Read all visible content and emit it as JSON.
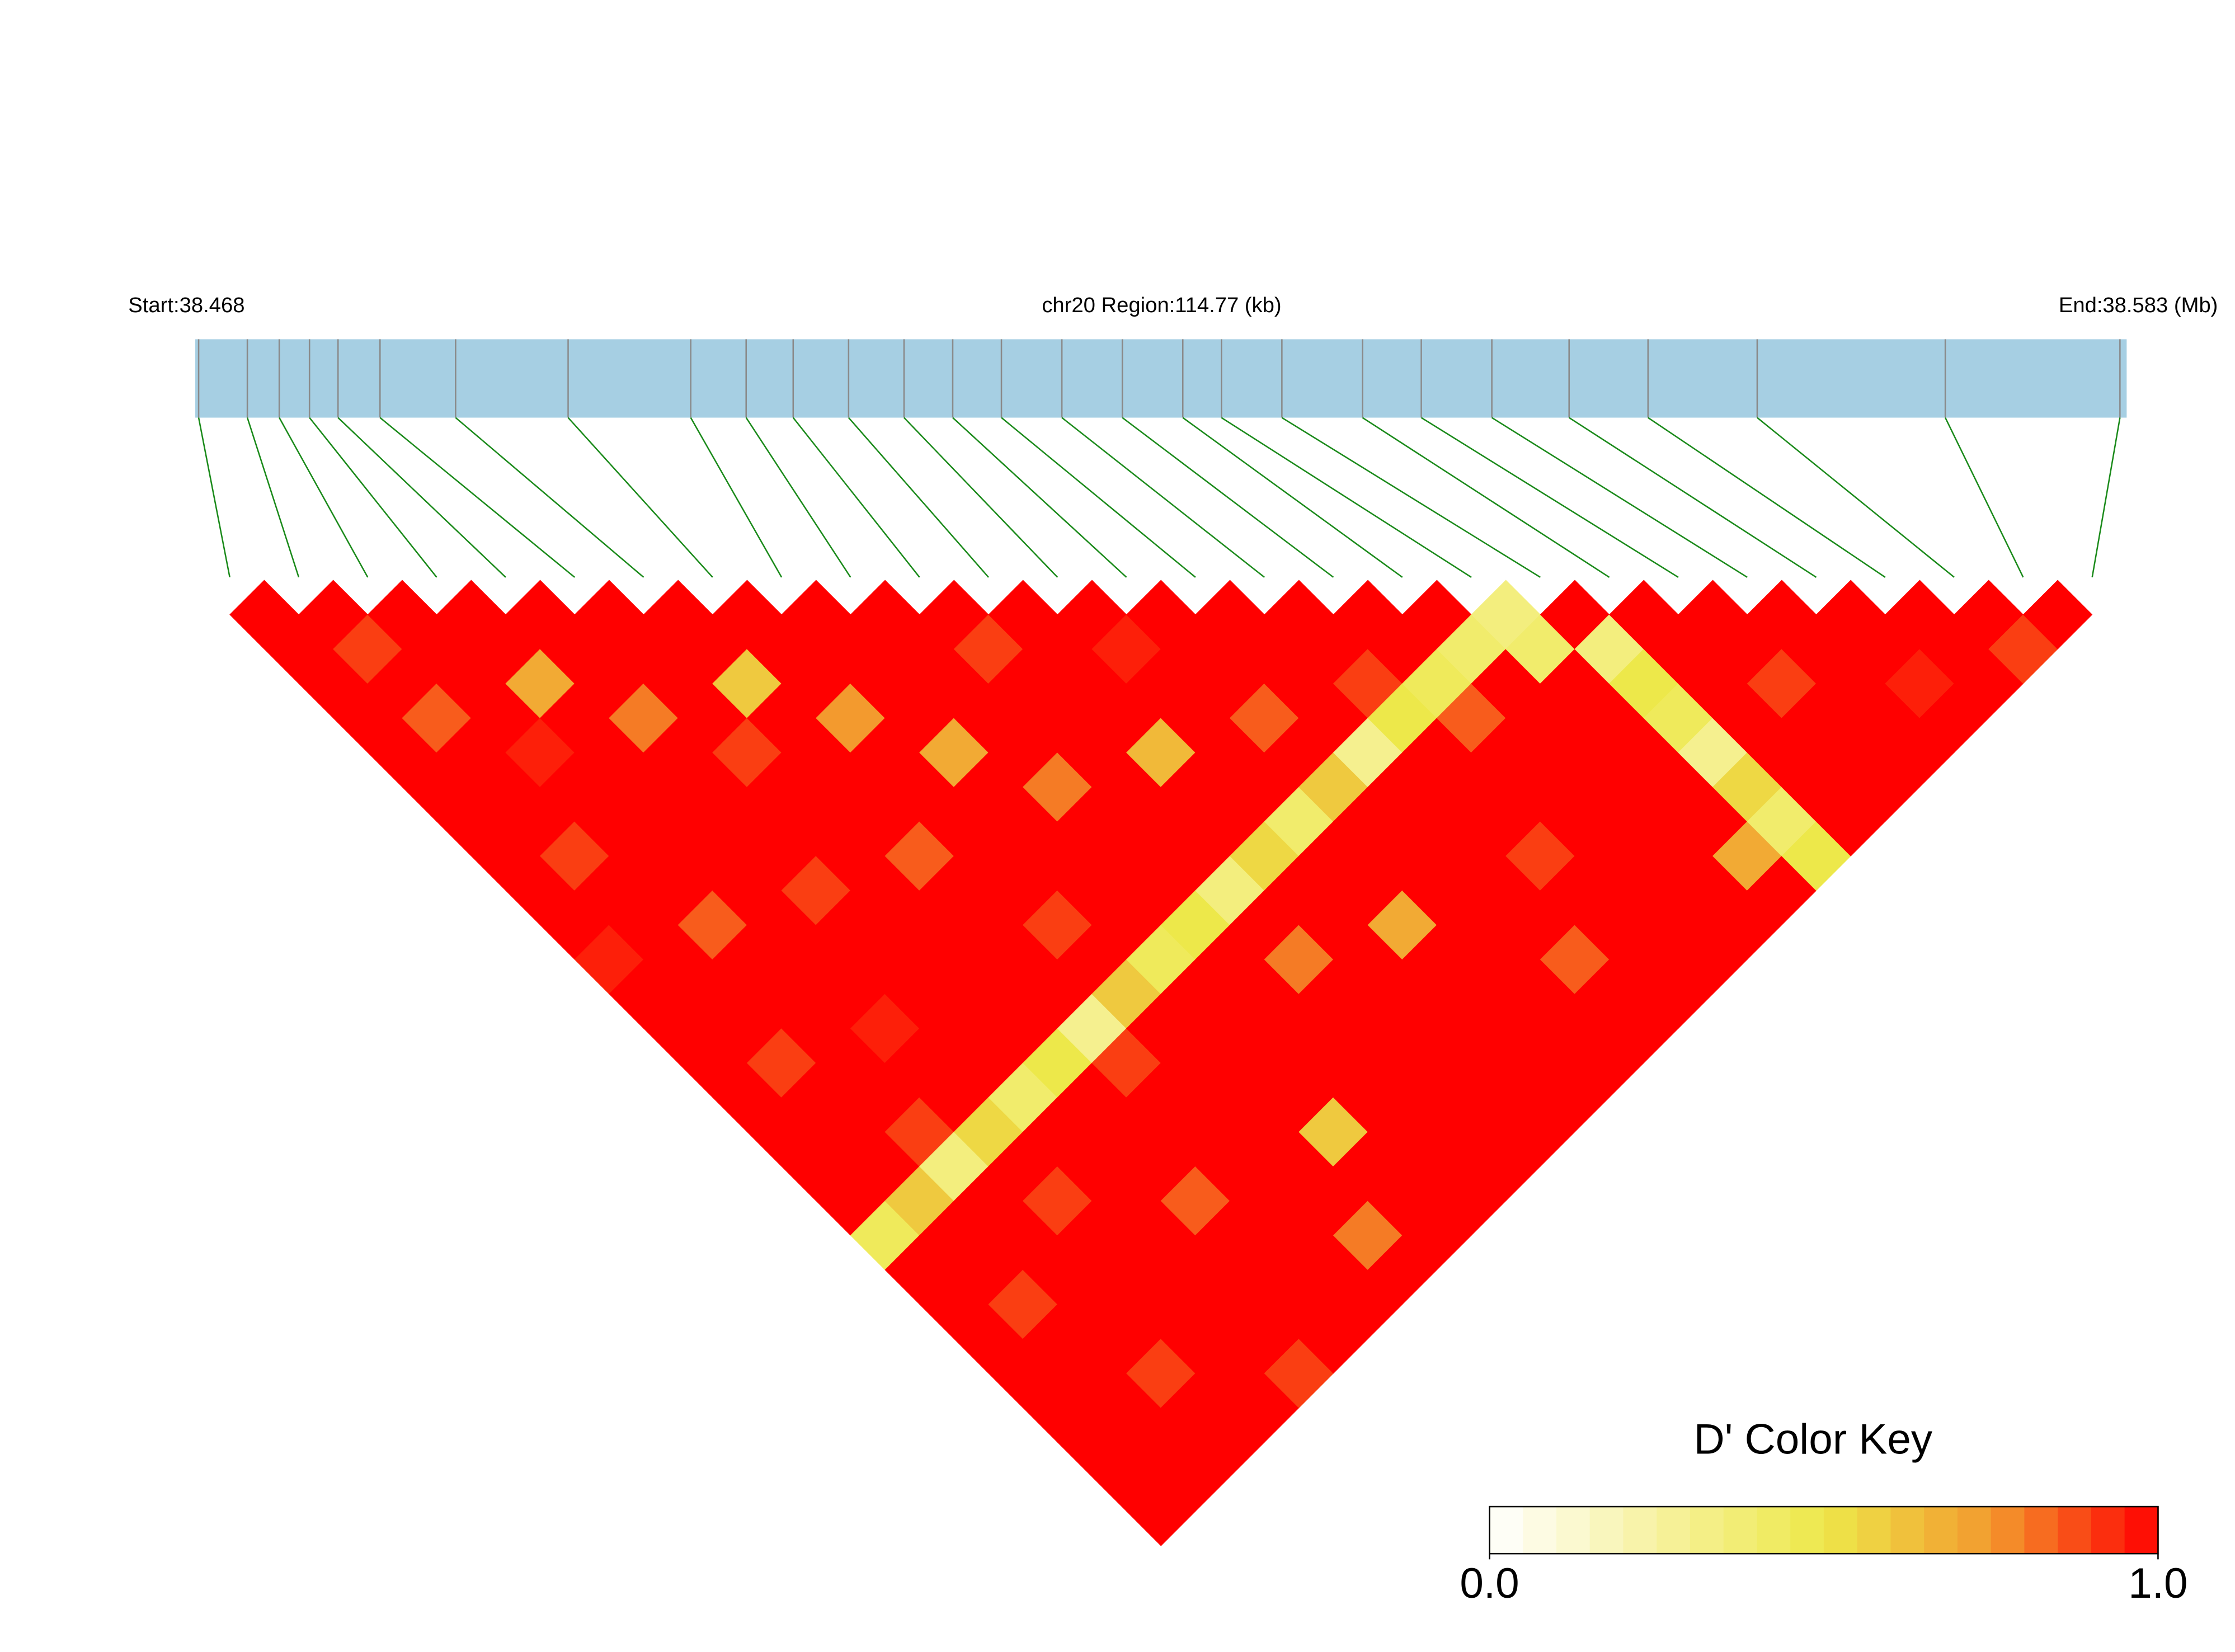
{
  "chart_data": {
    "type": "ld_heatmap",
    "start_label": "Start:38.468",
    "region_label": "chr20 Region:114.77 (kb)",
    "end_label": "End:38.583 (Mb)",
    "xlim": [
      38.468,
      38.583
    ],
    "positions": [
      38.4682,
      38.4711,
      38.473,
      38.4748,
      38.4765,
      38.479,
      38.4835,
      38.4902,
      38.4975,
      38.5008,
      38.5036,
      38.5069,
      38.5102,
      38.5131,
      38.516,
      38.5196,
      38.5232,
      38.5268,
      38.5291,
      38.5327,
      38.5375,
      38.541,
      38.5452,
      38.5498,
      38.5545,
      38.561,
      38.5722,
      38.5826
    ],
    "dprime": [
      [
        1
      ],
      [
        1,
        1
      ],
      [
        1,
        0.9,
        1
      ],
      [
        1,
        1,
        1,
        1
      ],
      [
        1,
        0.85,
        1,
        1,
        1
      ],
      [
        1,
        1,
        1,
        0.7,
        1,
        1
      ],
      [
        1,
        1,
        0.95,
        1,
        1,
        1,
        1
      ],
      [
        1,
        1,
        1,
        1,
        0.8,
        1,
        1,
        1
      ],
      [
        1,
        0.9,
        1,
        1,
        1,
        1,
        0.6,
        1,
        1
      ],
      [
        1,
        1,
        1,
        1,
        1,
        0.9,
        1,
        1,
        1,
        1
      ],
      [
        0.95,
        1,
        1,
        1,
        1,
        1,
        1,
        0.75,
        1,
        1,
        1
      ],
      [
        1,
        1,
        0.85,
        1,
        1,
        1,
        1,
        1,
        1,
        1,
        0.9,
        1
      ],
      [
        1,
        1,
        1,
        1,
        0.9,
        1,
        1,
        1,
        0.7,
        1,
        1,
        1,
        1
      ],
      [
        1,
        1,
        1,
        1,
        1,
        1,
        0.85,
        1,
        1,
        1,
        1,
        1,
        0.95,
        1
      ],
      [
        1,
        0.9,
        1,
        1,
        1,
        1,
        1,
        1,
        1,
        0.8,
        1,
        1,
        1,
        1,
        1
      ],
      [
        1,
        1,
        1,
        0.95,
        1,
        1,
        1,
        1,
        1,
        1,
        1,
        0.65,
        1,
        1,
        1,
        1
      ],
      [
        1,
        1,
        1,
        1,
        1,
        1,
        1,
        0.9,
        1,
        1,
        1,
        1,
        1,
        0.85,
        1,
        1,
        1
      ],
      [
        1,
        1,
        0.9,
        1,
        1,
        1,
        1,
        1,
        1,
        1,
        1,
        1,
        1,
        1,
        1,
        0.9,
        1,
        1
      ],
      [
        0.45,
        0.6,
        0.35,
        0.55,
        0.4,
        0.5,
        0.3,
        0.6,
        0.45,
        0.5,
        0.35,
        0.55,
        0.4,
        0.6,
        0.3,
        0.5,
        0.45,
        0.4,
        0.35
      ],
      [
        1,
        1,
        1,
        1,
        1,
        1,
        0.9,
        1,
        1,
        1,
        1,
        1,
        1,
        1,
        1,
        1,
        0.85,
        1,
        0.4,
        1
      ],
      [
        1,
        1,
        1,
        0.9,
        1,
        1,
        1,
        1,
        1,
        1,
        0.8,
        1,
        1,
        1,
        1,
        1,
        1,
        1,
        1,
        0.35,
        1
      ],
      [
        1,
        0.9,
        1,
        1,
        1,
        1,
        1,
        1,
        1,
        1,
        1,
        1,
        0.7,
        1,
        1,
        1,
        1,
        1,
        1,
        0.5,
        1,
        1
      ],
      [
        1,
        1,
        1,
        1,
        1,
        0.85,
        1,
        1,
        1,
        1,
        1,
        1,
        1,
        1,
        1,
        0.9,
        1,
        1,
        1,
        0.45,
        1,
        1,
        1
      ],
      [
        1,
        1,
        1,
        1,
        1,
        1,
        1,
        1,
        0.6,
        1,
        1,
        1,
        1,
        1,
        1,
        1,
        1,
        1,
        1,
        0.3,
        1,
        0.9,
        1,
        1
      ],
      [
        1,
        1,
        0.9,
        1,
        1,
        1,
        1,
        1,
        1,
        1,
        1,
        1,
        1,
        1,
        0.85,
        1,
        1,
        1,
        1,
        0.55,
        1,
        1,
        1,
        1,
        1
      ],
      [
        1,
        1,
        1,
        1,
        1,
        1,
        1,
        0.8,
        1,
        1,
        1,
        1,
        1,
        1,
        1,
        1,
        1,
        1,
        0.7,
        0.4,
        1,
        1,
        1,
        0.95,
        1,
        1
      ],
      [
        1,
        1,
        1,
        1,
        0.9,
        1,
        1,
        1,
        1,
        1,
        1,
        1,
        1,
        1,
        1,
        1,
        1,
        1,
        1,
        0.5,
        1,
        1,
        1,
        1,
        1,
        0.9,
        1
      ]
    ],
    "legend_title": "D' Color Key",
    "key_lim": [
      0,
      1
    ],
    "key_ticks": [
      {
        "value": 0,
        "label": "0.0"
      },
      {
        "value": 1,
        "label": "1.0"
      }
    ],
    "colors": [
      "#ffffff",
      "#f7f2a0",
      "#ede84a",
      "#f39a2e",
      "#ff0000"
    ],
    "bar_color": "#a6cfe3",
    "tick_color": "#8a8a8a",
    "link_color": "#1a8a1a"
  }
}
